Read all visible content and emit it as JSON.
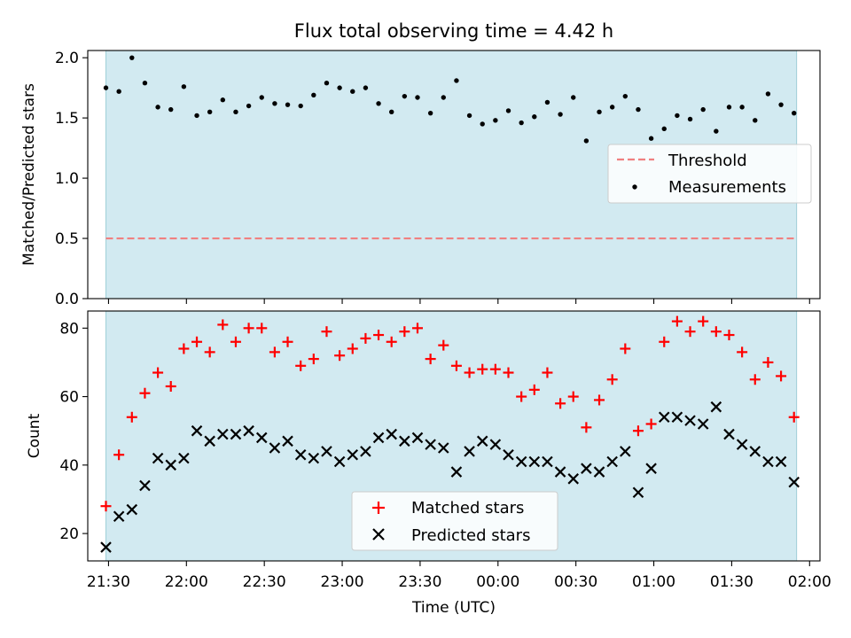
{
  "title": "Flux total observing time = 4.42 h",
  "colors": {
    "observing_span": "#add8e6",
    "threshold": "#f08080",
    "measurements": "#000000",
    "matched": "#ff0000",
    "predicted": "#000000"
  },
  "chart_data": [
    {
      "type": "scatter",
      "ylabel": "Matched/Predicted stars",
      "ylim": [
        0,
        2.06
      ],
      "yticks": [
        0.0,
        0.5,
        1.0,
        1.5,
        2.0
      ],
      "yticklabels": [
        "0.0",
        "0.5",
        "1.0",
        "1.5",
        "2.0"
      ],
      "xlim": [
        "21:22",
        "02:04"
      ],
      "observing_span": [
        "21:29",
        "01:55"
      ],
      "threshold": 0.5,
      "legend": {
        "loc": "center right",
        "entries": [
          "Threshold",
          "Measurements"
        ]
      },
      "series": [
        {
          "name": "Measurements",
          "marker": "dot",
          "x": [
            "21:29",
            "21:34",
            "21:39",
            "21:44",
            "21:49",
            "21:54",
            "21:59",
            "22:04",
            "22:09",
            "22:14",
            "22:19",
            "22:24",
            "22:29",
            "22:34",
            "22:39",
            "22:44",
            "22:49",
            "22:54",
            "22:59",
            "23:04",
            "23:09",
            "23:14",
            "23:19",
            "23:24",
            "23:29",
            "23:34",
            "23:39",
            "23:44",
            "23:49",
            "23:54",
            "23:59",
            "00:04",
            "00:09",
            "00:14",
            "00:19",
            "00:24",
            "00:29",
            "00:34",
            "00:39",
            "00:44",
            "00:49",
            "00:54",
            "00:59",
            "01:04",
            "01:09",
            "01:14",
            "01:19",
            "01:24",
            "01:29",
            "01:34",
            "01:39",
            "01:44",
            "01:49",
            "01:54"
          ],
          "y": [
            1.75,
            1.72,
            2.0,
            1.79,
            1.59,
            1.57,
            1.76,
            1.52,
            1.55,
            1.65,
            1.55,
            1.6,
            1.67,
            1.62,
            1.61,
            1.6,
            1.69,
            1.79,
            1.75,
            1.72,
            1.75,
            1.62,
            1.55,
            1.68,
            1.67,
            1.54,
            1.67,
            1.81,
            1.52,
            1.45,
            1.48,
            1.56,
            1.46,
            1.51,
            1.63,
            1.53,
            1.67,
            1.31,
            1.55,
            1.59,
            1.68,
            1.57,
            1.33,
            1.41,
            1.52,
            1.49,
            1.57,
            1.39,
            1.59,
            1.59,
            1.48,
            1.7,
            1.61,
            1.54
          ]
        }
      ]
    },
    {
      "type": "scatter",
      "ylabel": "Count",
      "xlabel": "Time (UTC)",
      "ylim": [
        12,
        85
      ],
      "yticks": [
        20,
        40,
        60,
        80
      ],
      "yticklabels": [
        "20",
        "40",
        "60",
        "80"
      ],
      "xlim": [
        "21:22",
        "02:04"
      ],
      "xticks": [
        "21:30",
        "22:00",
        "22:30",
        "23:00",
        "23:30",
        "00:00",
        "00:30",
        "01:00",
        "01:30",
        "02:00"
      ],
      "observing_span": [
        "21:29",
        "01:55"
      ],
      "legend": {
        "loc": "lower center",
        "entries": [
          "Matched stars",
          "Predicted stars"
        ]
      },
      "series": [
        {
          "name": "Matched stars",
          "marker": "plus",
          "x": [
            "21:29",
            "21:34",
            "21:39",
            "21:44",
            "21:49",
            "21:54",
            "21:59",
            "22:04",
            "22:09",
            "22:14",
            "22:19",
            "22:24",
            "22:29",
            "22:34",
            "22:39",
            "22:44",
            "22:49",
            "22:54",
            "22:59",
            "23:04",
            "23:09",
            "23:14",
            "23:19",
            "23:24",
            "23:29",
            "23:34",
            "23:39",
            "23:44",
            "23:49",
            "23:54",
            "23:59",
            "00:04",
            "00:09",
            "00:14",
            "00:19",
            "00:24",
            "00:29",
            "00:34",
            "00:39",
            "00:44",
            "00:49",
            "00:54",
            "00:59",
            "01:04",
            "01:09",
            "01:14",
            "01:19",
            "01:24",
            "01:29",
            "01:34",
            "01:39",
            "01:44",
            "01:49",
            "01:54"
          ],
          "y": [
            28,
            43,
            54,
            61,
            67,
            63,
            74,
            76,
            73,
            81,
            76,
            80,
            80,
            73,
            76,
            69,
            71,
            79,
            72,
            74,
            77,
            78,
            76,
            79,
            80,
            71,
            75,
            69,
            67,
            68,
            68,
            67,
            60,
            62,
            67,
            58,
            60,
            51,
            59,
            65,
            74,
            50,
            52,
            76,
            82,
            79,
            82,
            79,
            78,
            73,
            65,
            70,
            66,
            54
          ]
        },
        {
          "name": "Predicted stars",
          "marker": "x",
          "x": [
            "21:29",
            "21:34",
            "21:39",
            "21:44",
            "21:49",
            "21:54",
            "21:59",
            "22:04",
            "22:09",
            "22:14",
            "22:19",
            "22:24",
            "22:29",
            "22:34",
            "22:39",
            "22:44",
            "22:49",
            "22:54",
            "22:59",
            "23:04",
            "23:09",
            "23:14",
            "23:19",
            "23:24",
            "23:29",
            "23:34",
            "23:39",
            "23:44",
            "23:49",
            "23:54",
            "23:59",
            "00:04",
            "00:09",
            "00:14",
            "00:19",
            "00:24",
            "00:29",
            "00:34",
            "00:39",
            "00:44",
            "00:49",
            "00:54",
            "00:59",
            "01:04",
            "01:09",
            "01:14",
            "01:19",
            "01:24",
            "01:29",
            "01:34",
            "01:39",
            "01:44",
            "01:49",
            "01:54"
          ],
          "y": [
            16,
            25,
            27,
            34,
            42,
            40,
            42,
            50,
            47,
            49,
            49,
            50,
            48,
            45,
            47,
            43,
            42,
            44,
            41,
            43,
            44,
            48,
            49,
            47,
            48,
            46,
            45,
            38,
            44,
            47,
            46,
            43,
            41,
            41,
            41,
            38,
            36,
            39,
            38,
            41,
            44,
            32,
            39,
            54,
            54,
            53,
            52,
            57,
            49,
            46,
            44,
            41,
            41,
            35
          ]
        }
      ]
    }
  ]
}
